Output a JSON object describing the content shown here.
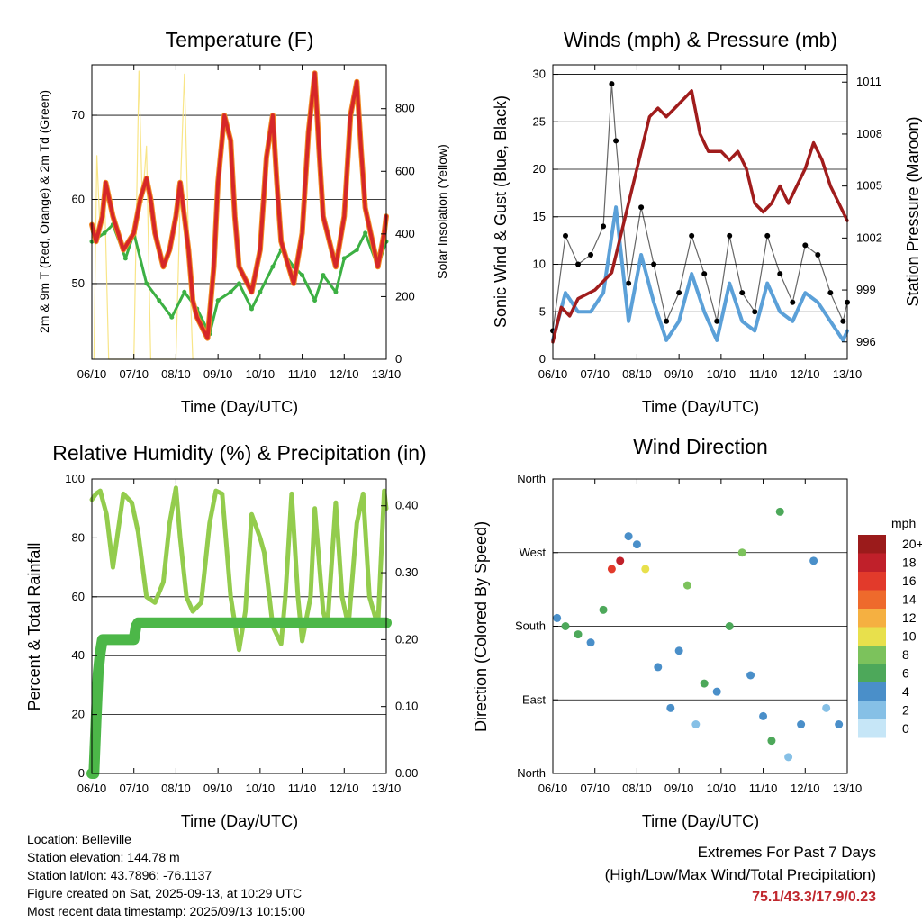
{
  "colors": {
    "temp2m": "#d62728",
    "temp9m": "#f08a24",
    "dewpoint": "#3cb043",
    "solar": "#f7e27a",
    "wind": "#5ba0d8",
    "gust": "#000000",
    "pressure": "#a01c1c",
    "rh": "#93cc4d",
    "rain": "#4cb748"
  },
  "panels": [
    {
      "id": "temperature",
      "title": "Temperature (F)",
      "xlabel": "Time (Day/UTC)",
      "ylabel_left": "2m & 9m T (Red, Orange) & 2m Td (Green)",
      "ylabel_right": "Solar Insolation (Yellow)",
      "xticks": [
        "06/10",
        "07/10",
        "08/10",
        "09/10",
        "10/10",
        "11/10",
        "12/10",
        "13/10"
      ],
      "yticks_left": [
        "50",
        "60",
        "70"
      ],
      "yticks_right": [
        "0",
        "200",
        "400",
        "600",
        "800"
      ]
    },
    {
      "id": "winds",
      "title": "Winds (mph) & Pressure (mb)",
      "xlabel": "Time (Day/UTC)",
      "ylabel_left": "Sonic Wind & Gust (Blue, Black)",
      "ylabel_right": "Station Pressure (Maroon)",
      "xticks": [
        "06/10",
        "07/10",
        "08/10",
        "09/10",
        "10/10",
        "11/10",
        "12/10",
        "13/10"
      ],
      "yticks_left": [
        "0",
        "5",
        "10",
        "15",
        "20",
        "25",
        "30"
      ],
      "yticks_right": [
        "996",
        "999",
        "1002",
        "1005",
        "1008",
        "1011"
      ]
    },
    {
      "id": "humidity",
      "title": "Relative Humidity (%) & Precipitation (in)",
      "xlabel": "Time (Day/UTC)",
      "ylabel_left": "Percent & Total Rainfall",
      "xticks": [
        "06/10",
        "07/10",
        "08/10",
        "09/10",
        "10/10",
        "11/10",
        "12/10",
        "13/10"
      ],
      "yticks_left": [
        "0",
        "20",
        "40",
        "60",
        "80",
        "100"
      ],
      "yticks_right": [
        "0.00",
        "0.10",
        "0.20",
        "0.30",
        "0.40"
      ]
    },
    {
      "id": "direction",
      "title": "Wind Direction",
      "xlabel": "Time (Day/UTC)",
      "ylabel_left": "Direction (Colored By Speed)",
      "xticks": [
        "06/10",
        "07/10",
        "08/10",
        "09/10",
        "10/10",
        "11/10",
        "12/10",
        "13/10"
      ],
      "yticks_left": [
        "North",
        "East",
        "South",
        "West",
        "North"
      ],
      "legend_title": "mph",
      "legend_labels": [
        "0",
        "2",
        "4",
        "6",
        "8",
        "10",
        "12",
        "14",
        "16",
        "18",
        "20+"
      ],
      "legend_colors": [
        "#c6e6f7",
        "#86c0e6",
        "#4a8fc9",
        "#4da85a",
        "#7cc25c",
        "#e8e04c",
        "#f5b041",
        "#ee6a2c",
        "#e23a2b",
        "#c0202a",
        "#9b1b1b"
      ]
    }
  ],
  "chart_data": [
    {
      "type": "line",
      "title": "Temperature (F)",
      "xlabel": "Time (Day/UTC)",
      "ylabel": "2m & 9m T (Red, Orange) & 2m Td (Green)",
      "ylabel_right": "Solar Insolation (Yellow)",
      "x": [
        "06/10",
        "07/10",
        "08/10",
        "09/10",
        "10/10",
        "11/10",
        "12/10",
        "13/10"
      ],
      "ylim": [
        41,
        76
      ],
      "ylim_right": [
        0,
        940
      ],
      "series": [
        {
          "name": "2m T",
          "axis": "left",
          "x": [
            0,
            0.1,
            0.25,
            0.33,
            0.5,
            0.75,
            1.0,
            1.15,
            1.3,
            1.4,
            1.5,
            1.7,
            1.85,
            2.0,
            2.1,
            2.3,
            2.4,
            2.5,
            2.75,
            2.9,
            3.0,
            3.15,
            3.3,
            3.4,
            3.5,
            3.8,
            4.0,
            4.15,
            4.3,
            4.4,
            4.5,
            4.8,
            5.0,
            5.15,
            5.3,
            5.4,
            5.5,
            5.8,
            6.0,
            6.15,
            6.3,
            6.4,
            6.5,
            6.8,
            6.95,
            7.0
          ],
          "values": [
            57,
            55,
            58,
            62,
            58,
            54,
            56,
            60,
            62.5,
            60,
            56,
            52,
            54,
            58,
            62,
            54,
            48,
            46,
            43.5,
            52,
            62,
            70,
            67,
            58,
            52,
            49,
            54,
            65,
            70,
            62,
            55,
            50,
            56,
            68,
            75,
            66,
            58,
            52,
            58,
            70,
            74,
            66,
            59,
            52,
            56,
            58
          ]
        },
        {
          "name": "2m Td",
          "axis": "left",
          "x": [
            0,
            0.3,
            0.5,
            0.8,
            1.0,
            1.3,
            1.6,
            1.9,
            2.2,
            2.5,
            2.8,
            3.0,
            3.3,
            3.5,
            3.8,
            4.0,
            4.3,
            4.5,
            4.8,
            5.0,
            5.3,
            5.5,
            5.8,
            6.0,
            6.3,
            6.5,
            6.8,
            7.0
          ],
          "values": [
            55,
            56,
            57,
            53,
            56,
            50,
            48,
            46,
            49,
            47,
            44,
            48,
            49,
            50,
            47,
            49,
            52,
            54,
            52,
            51,
            48,
            51,
            49,
            53,
            54,
            56,
            52,
            55
          ]
        },
        {
          "name": "Solar",
          "axis": "right",
          "x": [
            0.05,
            0.12,
            0.2,
            0.3,
            0.4,
            1.0,
            1.12,
            1.2,
            1.3,
            1.4,
            2.0,
            2.12,
            2.2,
            2.3,
            2.4
          ],
          "values": [
            0,
            650,
            400,
            550,
            0,
            0,
            920,
            500,
            680,
            0,
            0,
            600,
            910,
            380,
            0
          ]
        }
      ]
    },
    {
      "type": "line",
      "title": "Winds (mph) & Pressure (mb)",
      "xlabel": "Time (Day/UTC)",
      "ylabel": "Sonic Wind & Gust (Blue, Black)",
      "ylabel_right": "Station Pressure (Maroon)",
      "x": [
        "06/10",
        "07/10",
        "08/10",
        "09/10",
        "10/10",
        "11/10",
        "12/10",
        "13/10"
      ],
      "ylim": [
        0,
        31
      ],
      "ylim_right": [
        995,
        1012
      ],
      "series": [
        {
          "name": "Sonic Wind",
          "axis": "left",
          "x": [
            0,
            0.3,
            0.6,
            0.9,
            1.2,
            1.5,
            1.8,
            2.1,
            2.4,
            2.7,
            3.0,
            3.3,
            3.6,
            3.9,
            4.2,
            4.5,
            4.8,
            5.1,
            5.4,
            5.7,
            6.0,
            6.3,
            6.6,
            6.9,
            7.0
          ],
          "values": [
            2,
            7,
            5,
            5,
            7,
            16,
            4,
            11,
            6,
            2,
            4,
            9,
            5,
            2,
            8,
            4,
            3,
            8,
            5,
            4,
            7,
            6,
            4,
            2,
            3
          ]
        },
        {
          "name": "Gust",
          "axis": "left",
          "x": [
            0,
            0.3,
            0.6,
            0.9,
            1.2,
            1.4,
            1.5,
            1.8,
            2.1,
            2.4,
            2.7,
            3.0,
            3.3,
            3.6,
            3.9,
            4.2,
            4.5,
            4.8,
            5.1,
            5.4,
            5.7,
            6.0,
            6.3,
            6.6,
            6.9,
            7.0
          ],
          "values": [
            3,
            13,
            10,
            11,
            14,
            29,
            23,
            8,
            16,
            10,
            4,
            7,
            13,
            9,
            4,
            13,
            7,
            5,
            13,
            9,
            6,
            12,
            11,
            7,
            4,
            6
          ]
        },
        {
          "name": "Station Pressure",
          "axis": "right",
          "x": [
            0,
            0.2,
            0.4,
            0.6,
            1.0,
            1.4,
            1.6,
            2.0,
            2.3,
            2.5,
            2.7,
            2.9,
            3.1,
            3.3,
            3.5,
            3.7,
            4.0,
            4.2,
            4.4,
            4.6,
            4.8,
            5.0,
            5.2,
            5.4,
            5.6,
            5.8,
            6.0,
            6.2,
            6.4,
            6.6,
            6.8,
            7.0
          ],
          "values": [
            996,
            998,
            997.5,
            998.5,
            999,
            1000,
            1002,
            1006,
            1009,
            1009.5,
            1009,
            1009.5,
            1010,
            1010.5,
            1008,
            1007,
            1007,
            1006.5,
            1007,
            1006,
            1004,
            1003.5,
            1004,
            1005,
            1004,
            1005,
            1006,
            1007.5,
            1006.5,
            1005,
            1004,
            1003
          ]
        }
      ]
    },
    {
      "type": "line",
      "title": "Relative Humidity (%) & Precipitation (in)",
      "xlabel": "Time (Day/UTC)",
      "ylabel": "Percent & Total Rainfall",
      "x": [
        "06/10",
        "07/10",
        "08/10",
        "09/10",
        "10/10",
        "11/10",
        "12/10",
        "13/10"
      ],
      "ylim": [
        0,
        100
      ],
      "ylim_right": [
        0,
        0.44
      ],
      "series": [
        {
          "name": "Relative Humidity",
          "axis": "left",
          "x": [
            0,
            0.1,
            0.2,
            0.35,
            0.5,
            0.6,
            0.75,
            0.95,
            1.1,
            1.3,
            1.5,
            1.7,
            1.85,
            2.0,
            2.1,
            2.25,
            2.4,
            2.6,
            2.8,
            2.95,
            3.1,
            3.3,
            3.5,
            3.65,
            3.8,
            4.0,
            4.1,
            4.3,
            4.5,
            4.6,
            4.75,
            4.9,
            5.0,
            5.2,
            5.3,
            5.5,
            5.6,
            5.8,
            5.95,
            6.1,
            6.3,
            6.45,
            6.6,
            6.8,
            6.95,
            7.0
          ],
          "values": [
            93,
            95,
            96,
            88,
            70,
            80,
            95,
            92,
            82,
            60,
            58,
            65,
            85,
            97,
            80,
            60,
            55,
            58,
            85,
            96,
            95,
            60,
            42,
            55,
            88,
            80,
            75,
            50,
            44,
            60,
            95,
            60,
            45,
            60,
            90,
            55,
            50,
            92,
            60,
            50,
            85,
            95,
            60,
            50,
            96,
            90
          ]
        },
        {
          "name": "Total Rainfall",
          "axis": "right",
          "x": [
            0,
            0.05,
            0.1,
            0.15,
            0.2,
            0.25,
            0.3,
            0.5,
            0.8,
            1.0,
            1.05,
            1.1,
            7.0
          ],
          "values": [
            0,
            0.0,
            0.08,
            0.15,
            0.18,
            0.2,
            0.2,
            0.2,
            0.2,
            0.2,
            0.22,
            0.225,
            0.225
          ]
        }
      ]
    },
    {
      "type": "scatter",
      "title": "Wind Direction",
      "xlabel": "Time (Day/UTC)",
      "ylabel": "Direction (Colored By Speed)",
      "x": [
        "06/10",
        "07/10",
        "08/10",
        "09/10",
        "10/10",
        "11/10",
        "12/10",
        "13/10"
      ],
      "ylim": [
        0,
        360
      ],
      "yticks": [
        "North",
        "East",
        "South",
        "West",
        "North"
      ],
      "legend_title": "mph",
      "series": [
        {
          "name": "Direction",
          "x": [
            0.1,
            0.3,
            0.6,
            0.9,
            1.2,
            1.4,
            1.6,
            1.8,
            2.0,
            2.2,
            2.5,
            2.8,
            3.0,
            3.2,
            3.4,
            3.6,
            3.9,
            4.2,
            4.5,
            4.7,
            5.0,
            5.2,
            5.4,
            5.6,
            5.9,
            6.2,
            6.5,
            6.8
          ],
          "values": [
            190,
            180,
            170,
            160,
            200,
            250,
            260,
            290,
            280,
            250,
            130,
            80,
            150,
            230,
            60,
            110,
            100,
            180,
            270,
            120,
            70,
            40,
            320,
            20,
            60,
            260,
            80,
            60
          ],
          "speeds": [
            4,
            6,
            5,
            4,
            6,
            16,
            18,
            4,
            3,
            10,
            4,
            3,
            3,
            8,
            2,
            6,
            4,
            6,
            8,
            3,
            3,
            6,
            6,
            2,
            4,
            4,
            2,
            3
          ]
        }
      ]
    }
  ],
  "info": {
    "location": "Location: Belleville",
    "elevation": "Station elevation: 144.78 m",
    "latlon": "Station lat/lon: 43.7896; -76.1137",
    "created": "Figure created on Sat, 2025-09-13, at 10:29 UTC",
    "timestamp": "Most recent data timestamp: 2025/09/13 10:15:00"
  },
  "extremes": {
    "line1": "Extremes For Past 7 Days",
    "line2": "(High/Low/Max Wind/Total Precipitation)",
    "values": "75.1/43.3/17.9/0.23"
  }
}
